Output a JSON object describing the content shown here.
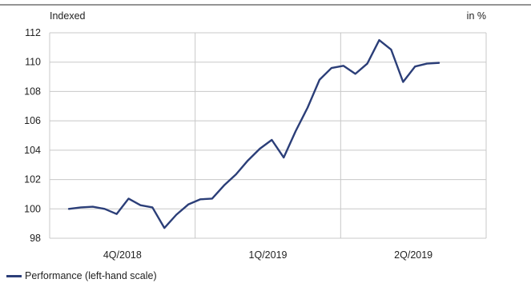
{
  "chart_data": {
    "type": "line",
    "left_axis_label": "Indexed",
    "right_axis_label": "in %",
    "ylim": [
      98,
      112
    ],
    "y_ticks": [
      "112",
      "110",
      "108",
      "106",
      "104",
      "102",
      "100",
      "98"
    ],
    "x_period_labels": [
      "4Q/2018",
      "1Q/2019",
      "2Q/2019"
    ],
    "grid": true,
    "legend_position": "bottom-left",
    "series": [
      {
        "name": "Performance (left-hand scale)",
        "color": "#2b3e78",
        "values": [
          100.0,
          100.1,
          100.15,
          100.0,
          99.65,
          100.7,
          100.25,
          100.1,
          98.7,
          99.6,
          100.3,
          100.65,
          100.7,
          101.6,
          102.35,
          103.3,
          104.1,
          104.7,
          103.5,
          105.3,
          106.9,
          108.8,
          109.6,
          109.75,
          109.2,
          109.9,
          111.5,
          110.85,
          108.65,
          109.7,
          109.9,
          109.95
        ]
      }
    ]
  }
}
